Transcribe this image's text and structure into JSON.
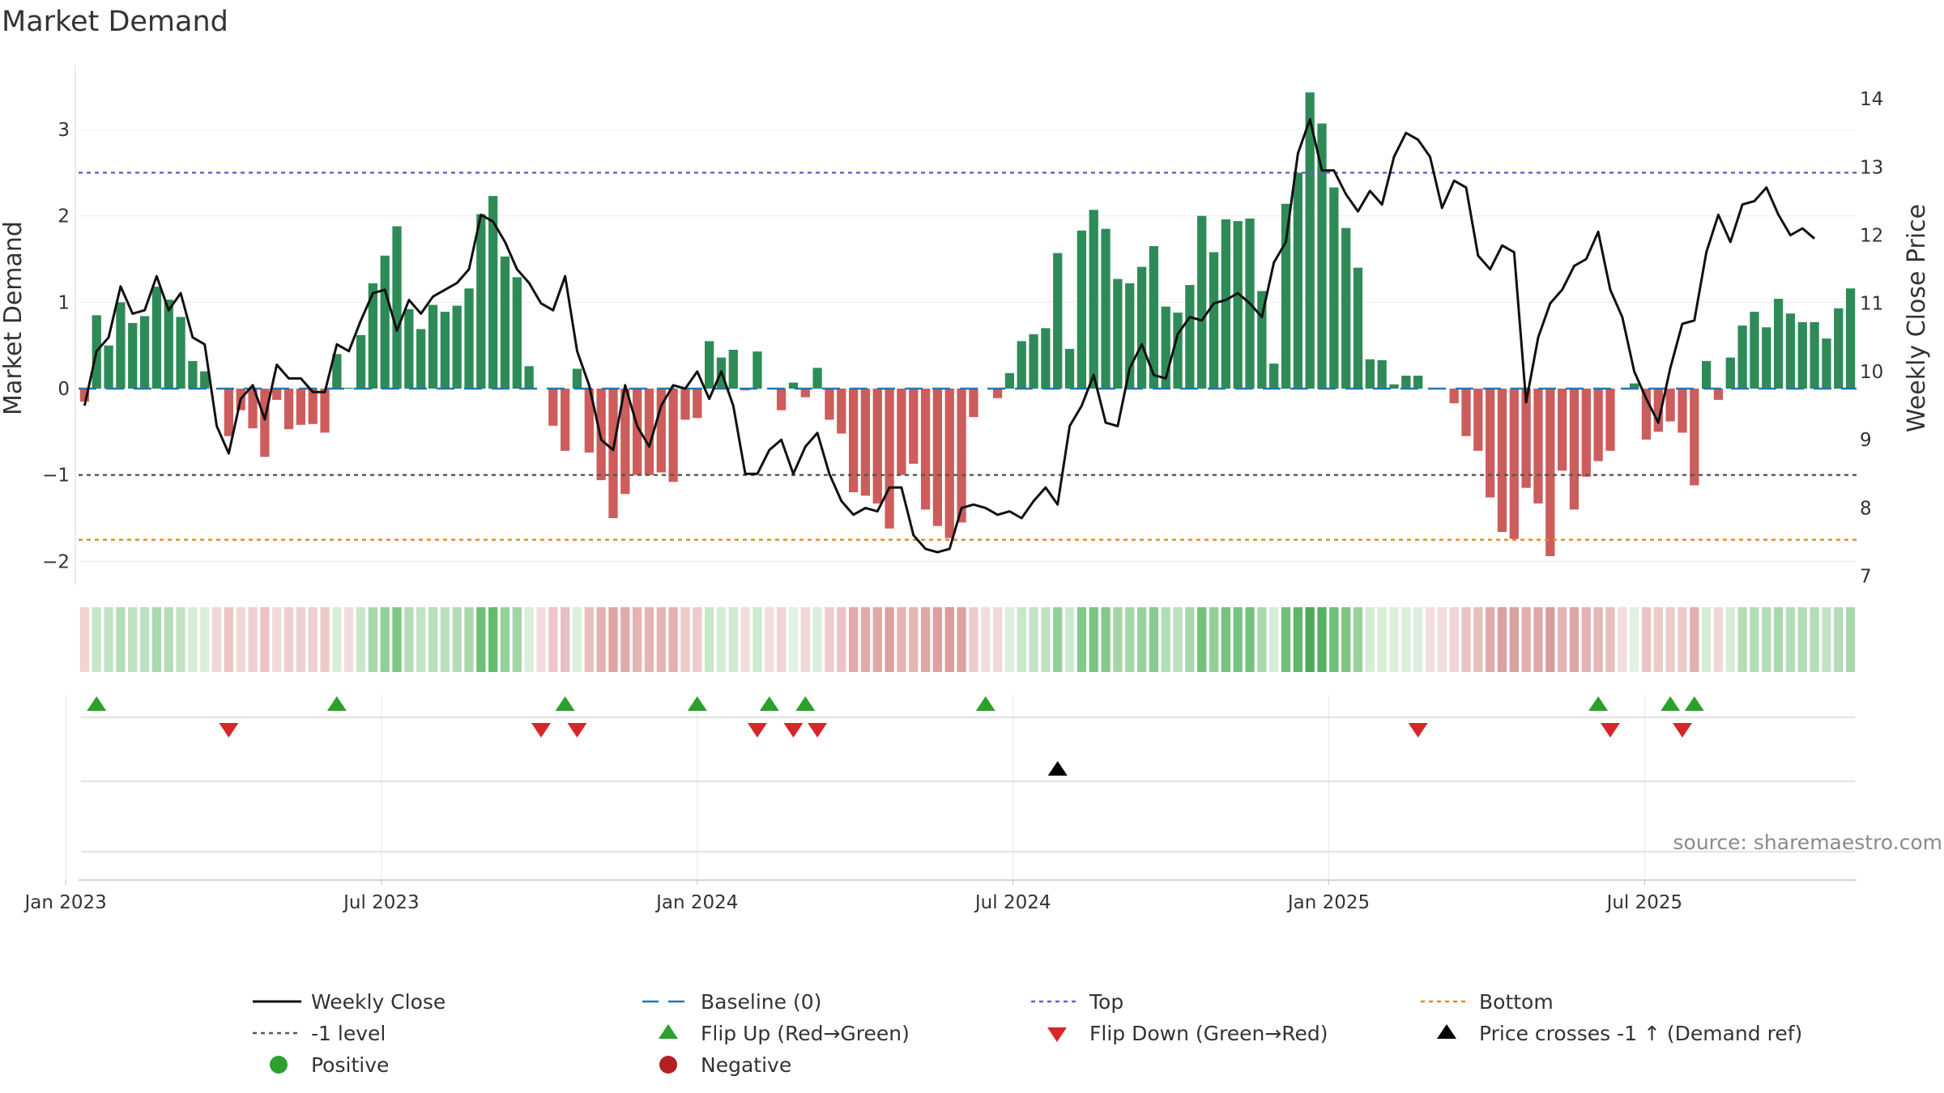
{
  "chart_data": {
    "type": "bar",
    "title": "Market Demand",
    "ylabel": "Market Demand",
    "y2label": "Weekly Close Price",
    "source": "source: sharemaestro.com",
    "ylim": [
      -2.25,
      3.75
    ],
    "y2lim": [
      6.9,
      14.5
    ],
    "yticks": [
      -2,
      -1,
      0,
      1,
      2,
      3
    ],
    "yticklabels": [
      "−2",
      "−1",
      "0",
      "1",
      "2",
      "3"
    ],
    "y2ticks": [
      7,
      8,
      9,
      10,
      11,
      12,
      13,
      14
    ],
    "y2ticklabels": [
      "7",
      "8",
      "9",
      "10",
      "11",
      "12",
      "13",
      "14"
    ],
    "xticks": [
      -1.57,
      24.71,
      51,
      77.29,
      103.57,
      129.86
    ],
    "xticklabels": [
      "Jan 2023",
      "Jul 2023",
      "Jan 2024",
      "Jul 2024",
      "Jan 2025",
      "Jul 2025"
    ],
    "reference_levels": {
      "baseline": 0,
      "top": 2.5,
      "minus_one": -1,
      "bottom": -1.75
    },
    "demand": [
      -0.15,
      0.85,
      0.5,
      1.0,
      0.76,
      0.84,
      1.18,
      1.03,
      0.83,
      0.32,
      0.2,
      0.0,
      -0.55,
      -0.25,
      -0.46,
      -0.79,
      -0.13,
      -0.47,
      -0.42,
      -0.41,
      -0.51,
      0.4,
      0.01,
      0.62,
      1.22,
      1.54,
      1.88,
      0.92,
      0.69,
      0.97,
      0.89,
      0.96,
      1.16,
      2.02,
      2.23,
      1.53,
      1.29,
      0.26,
      0.0,
      -0.43,
      -0.72,
      0.23,
      -0.74,
      -1.06,
      -1.5,
      -1.22,
      -1.0,
      -1.0,
      -0.97,
      -1.08,
      -0.36,
      -0.34,
      0.55,
      0.36,
      0.45,
      -0.02,
      0.43,
      0.0,
      -0.25,
      0.07,
      -0.1,
      0.24,
      -0.36,
      -0.52,
      -1.2,
      -1.24,
      -1.33,
      -1.62,
      -1.0,
      -0.87,
      -1.4,
      -1.59,
      -1.73,
      -1.55,
      -0.33,
      0.0,
      -0.11,
      0.18,
      0.55,
      0.63,
      0.7,
      1.57,
      0.46,
      1.83,
      2.07,
      1.85,
      1.27,
      1.22,
      1.41,
      1.65,
      0.95,
      0.88,
      1.2,
      2.0,
      1.58,
      1.96,
      1.94,
      1.97,
      1.13,
      0.29,
      2.14,
      2.5,
      3.43,
      3.07,
      2.33,
      1.86,
      1.4,
      0.34,
      0.33,
      0.05,
      0.15,
      0.15,
      0.0,
      0.0,
      -0.17,
      -0.55,
      -0.72,
      -1.26,
      -1.66,
      -1.74,
      -1.15,
      -1.33,
      -1.94,
      -0.95,
      -1.4,
      -1.02,
      -0.84,
      -0.72,
      0.0,
      0.06,
      -0.59,
      -0.5,
      -0.38,
      -0.51,
      -1.12,
      0.32,
      -0.13,
      0.36,
      0.73,
      0.89,
      0.71,
      1.04,
      0.87,
      0.77,
      0.77,
      0.58,
      0.93,
      1.16
    ],
    "weekly_close": [
      9.5,
      10.3,
      10.5,
      11.25,
      10.85,
      10.9,
      11.4,
      10.9,
      11.15,
      10.5,
      10.4,
      9.2,
      8.8,
      9.6,
      9.8,
      9.3,
      10.1,
      9.9,
      9.9,
      9.7,
      9.7,
      10.4,
      10.3,
      10.75,
      11.15,
      11.2,
      10.6,
      11.05,
      10.85,
      11.1,
      11.2,
      11.3,
      11.5,
      12.3,
      12.2,
      11.9,
      11.5,
      11.3,
      11.0,
      10.9,
      11.4,
      10.3,
      9.8,
      9.0,
      8.85,
      9.8,
      9.2,
      8.9,
      9.5,
      9.8,
      9.75,
      10.0,
      9.6,
      10.0,
      9.5,
      8.5,
      8.5,
      8.85,
      9.0,
      8.5,
      8.9,
      9.1,
      8.5,
      8.1,
      7.9,
      8.0,
      7.95,
      8.3,
      8.3,
      7.6,
      7.4,
      7.35,
      7.4,
      8.0,
      8.05,
      8.0,
      7.9,
      7.95,
      7.85,
      8.1,
      8.3,
      8.05,
      9.2,
      9.5,
      9.95,
      9.25,
      9.2,
      10.05,
      10.4,
      9.95,
      9.9,
      10.55,
      10.8,
      10.75,
      11.0,
      11.05,
      11.15,
      11.0,
      10.8,
      11.6,
      11.9,
      13.2,
      13.7,
      12.95,
      12.95,
      12.6,
      12.35,
      12.65,
      12.45,
      13.15,
      13.5,
      13.4,
      13.15,
      12.4,
      12.8,
      12.7,
      11.7,
      11.5,
      11.85,
      11.75,
      9.55,
      10.5,
      11.0,
      11.2,
      11.55,
      11.65,
      12.05,
      11.2,
      10.8,
      10.0,
      9.6,
      9.25,
      10.05,
      10.7,
      10.75,
      11.75,
      12.3,
      11.9,
      12.45,
      12.5,
      12.7,
      12.3,
      12.0,
      12.1,
      11.95
    ],
    "tile_colors": [
      "#f0d4d4",
      "#c8e6c9",
      "#c2e3c4",
      "#b4ddb7",
      "#c0e2c2",
      "#bde1bf",
      "#a9d8ad",
      "#b4ddb7",
      "#c2e3c4",
      "#d5ecd6",
      "#dcefdd",
      "#f1d8d8",
      "#ecc7c7",
      "#f1d6d6",
      "#eecfcf",
      "#ebc3c3",
      "#f2dada",
      "#eecfcf",
      "#eed0d0",
      "#eed0d0",
      "#edcbcb",
      "#d7edd8",
      "#f2dddd",
      "#c9e7cb",
      "#a9d8ad",
      "#93cf99",
      "#7fc686",
      "#b4ddb7",
      "#c2e3c4",
      "#b7dfba",
      "#bae0bd",
      "#b4ddb7",
      "#a9d8ad",
      "#6ebf77",
      "#64ba6d",
      "#93cf99",
      "#a3d5a7",
      "#d9eeda",
      "#f2dddd",
      "#ecc7c7",
      "#e8bebe",
      "#dcefdd",
      "#e8bebe",
      "#e3b1b1",
      "#dea3a3",
      "#e1aaaa",
      "#e4b3b3",
      "#e4b3b3",
      "#e4b4b4",
      "#e3b0b0",
      "#edcbcb",
      "#edcbcb",
      "#c8e6c9",
      "#d5ecd6",
      "#cee9d0",
      "#f2dddd",
      "#cee9d0",
      "#f2dddd",
      "#f0d4d4",
      "#e0f2e1",
      "#f1d8d8",
      "#d9eeda",
      "#edcbcb",
      "#ebc3c3",
      "#e1aaaa",
      "#e1aaaa",
      "#e0a7a7",
      "#dca0a0",
      "#e4b4b4",
      "#e5b6b6",
      "#dfa6a6",
      "#dca0a0",
      "#da9b9b",
      "#dda2a2",
      "#edcbcb",
      "#f2dddd",
      "#f1d8d8",
      "#dcefdd",
      "#c8e6c9",
      "#c4e4c6",
      "#c0e2c2",
      "#93cf99",
      "#cee9d0",
      "#84c88b",
      "#7bc483",
      "#84c88b",
      "#a3d5a7",
      "#a6d6aa",
      "#99d19e",
      "#89ca90",
      "#b4ddb7",
      "#bae0bd",
      "#a9d8ad",
      "#74c17c",
      "#93cf99",
      "#77c27f",
      "#77c27f",
      "#76c17e",
      "#aad9ae",
      "#d5ecd6",
      "#6fc078",
      "#5fb669",
      "#4ca858",
      "#56b061",
      "#6ebf77",
      "#7fc686",
      "#99d19e",
      "#d5ecd6",
      "#d5ecd6",
      "#dcefdd",
      "#dcefdd",
      "#dcefdd",
      "#f2dddd",
      "#f2dddd",
      "#f0d4d4",
      "#ebc3c3",
      "#e8bebe",
      "#e1aaaa",
      "#dca0a0",
      "#dba0a0",
      "#e2aeae",
      "#e0a7a7",
      "#da9b9b",
      "#e4b4b4",
      "#dfa6a6",
      "#e4b3b3",
      "#e5b6b6",
      "#e8bebe",
      "#f2dddd",
      "#e0f2e1",
      "#ebc3c3",
      "#edcbcb",
      "#edcbcb",
      "#edcbcb",
      "#e3b0b0",
      "#d5ecd6",
      "#f1d8d8",
      "#d5ecd6",
      "#b4ddb7",
      "#b4ddb7",
      "#b4ddb7",
      "#a9d8ad",
      "#b4ddb7",
      "#b4ddb7",
      "#b4ddb7",
      "#c2e3c4",
      "#b4ddb7",
      "#a9d8ad"
    ],
    "flip_up_weeks": [
      1,
      21,
      40,
      51,
      57,
      60,
      75,
      126,
      132,
      134
    ],
    "flip_down_weeks": [
      12,
      38,
      41,
      56,
      59,
      61,
      111,
      127,
      133
    ],
    "price_cross_weeks": [
      81
    ],
    "colors": {
      "positive_bar": "#2e8b57",
      "negative_bar": "#cd5c5c",
      "price_line": "#111111",
      "baseline": "#1f77b4",
      "top_line": "#6a5acd",
      "minus_one_line": "#555555",
      "bottom_line": "#e08a1e",
      "flip_up": "#2ca02c",
      "flip_down": "#d62728",
      "cross": "#000000",
      "positive_dot": "#2ca02c",
      "negative_dot": "#b22222"
    },
    "legend": [
      {
        "key": "weekly_close",
        "label": "Weekly Close"
      },
      {
        "key": "baseline",
        "label": "Baseline (0)"
      },
      {
        "key": "top",
        "label": "Top"
      },
      {
        "key": "bottom",
        "label": "Bottom"
      },
      {
        "key": "minus_one",
        "label": "-1 level"
      },
      {
        "key": "flip_up",
        "label": "Flip Up (Red→Green)"
      },
      {
        "key": "flip_down",
        "label": "Flip Down (Green→Red)"
      },
      {
        "key": "price_cross",
        "label": "Price crosses -1 ↑ (Demand ref)"
      },
      {
        "key": "positive",
        "label": "Positive"
      },
      {
        "key": "negative",
        "label": "Negative"
      }
    ]
  }
}
